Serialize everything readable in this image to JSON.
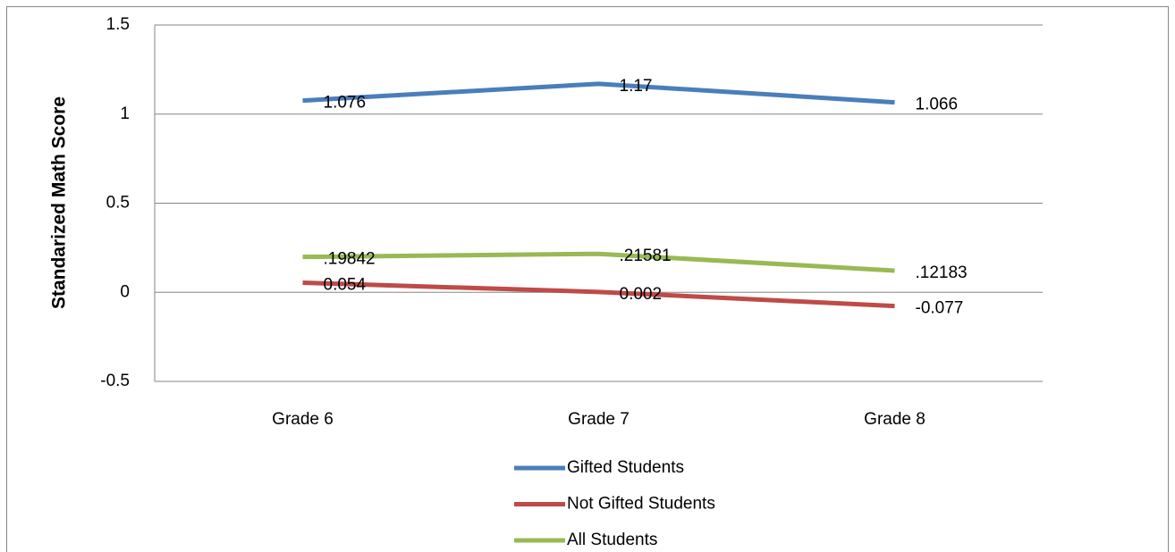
{
  "chart_data": {
    "type": "line",
    "y_label": "Standarized Math Score",
    "categories": [
      "Grade 6",
      "Grade 7",
      "Grade 8"
    ],
    "series": [
      {
        "name": "Gifted Students",
        "color": "#4a7ebb",
        "values": [
          1.076,
          1.17,
          1.066
        ]
      },
      {
        "name": "Not Gifted Students",
        "color": "#be4b48",
        "values": [
          0.054,
          0.002,
          -0.077
        ]
      },
      {
        "name": "All Students",
        "color": "#98b954",
        "values": [
          0.19842,
          0.21581,
          0.12183
        ],
        "value_labels": [
          ".19842",
          ".21581",
          ".12183"
        ]
      }
    ],
    "ylim": [
      -0.5,
      1.5
    ],
    "yticks": [
      1.5,
      1,
      0.5,
      0,
      -0.5
    ],
    "grid": true,
    "legend": "bottom"
  }
}
